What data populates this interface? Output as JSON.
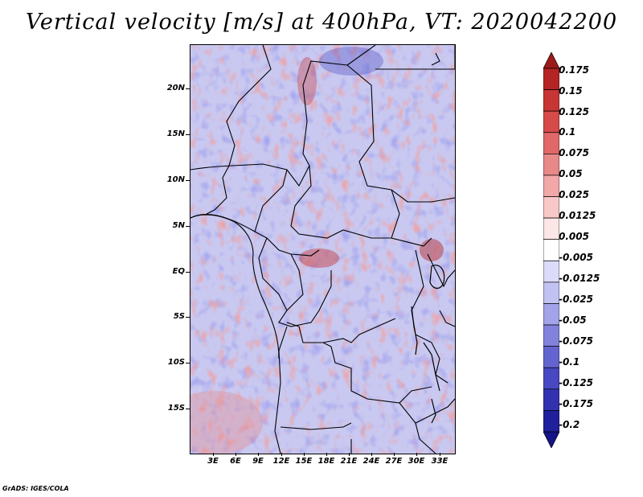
{
  "title": "Vertical velocity [m/s] at 400hPa, VT: 2020042200",
  "credit": "GrADS: IGES/COLA",
  "y_axis_labels": [
    "20N",
    "15N",
    "10N",
    "5N",
    "EQ",
    "5S",
    "10S",
    "15S"
  ],
  "x_axis_labels": [
    "3E",
    "6E",
    "9E",
    "12E",
    "15E",
    "18E",
    "21E",
    "24E",
    "27E",
    "30E",
    "33E"
  ],
  "colorbar": {
    "labels": [
      "0.175",
      "0.15",
      "0.125",
      "0.1",
      "0.075",
      "0.05",
      "0.025",
      "0.0125",
      "0.005",
      "-0.005",
      "-0.0125",
      "-0.025",
      "-0.05",
      "-0.075",
      "-0.1",
      "-0.125",
      "-0.175",
      "-0.2"
    ],
    "colors": [
      "#9e1a1a",
      "#b52424",
      "#c83535",
      "#d64a4a",
      "#e06868",
      "#e98888",
      "#f2a8a8",
      "#f8c8c8",
      "#fde6e6",
      "#ffffff",
      "#dcdcfa",
      "#c2c2f2",
      "#a3a3ea",
      "#8282dd",
      "#6464d0",
      "#4848c2",
      "#3232b0",
      "#20209c",
      "#141488"
    ]
  },
  "map": {
    "lat_range": [
      -19,
      25
    ],
    "lon_range": [
      0.5,
      35
    ],
    "positive_color": "#e05050",
    "negative_color": "#5050dd"
  }
}
